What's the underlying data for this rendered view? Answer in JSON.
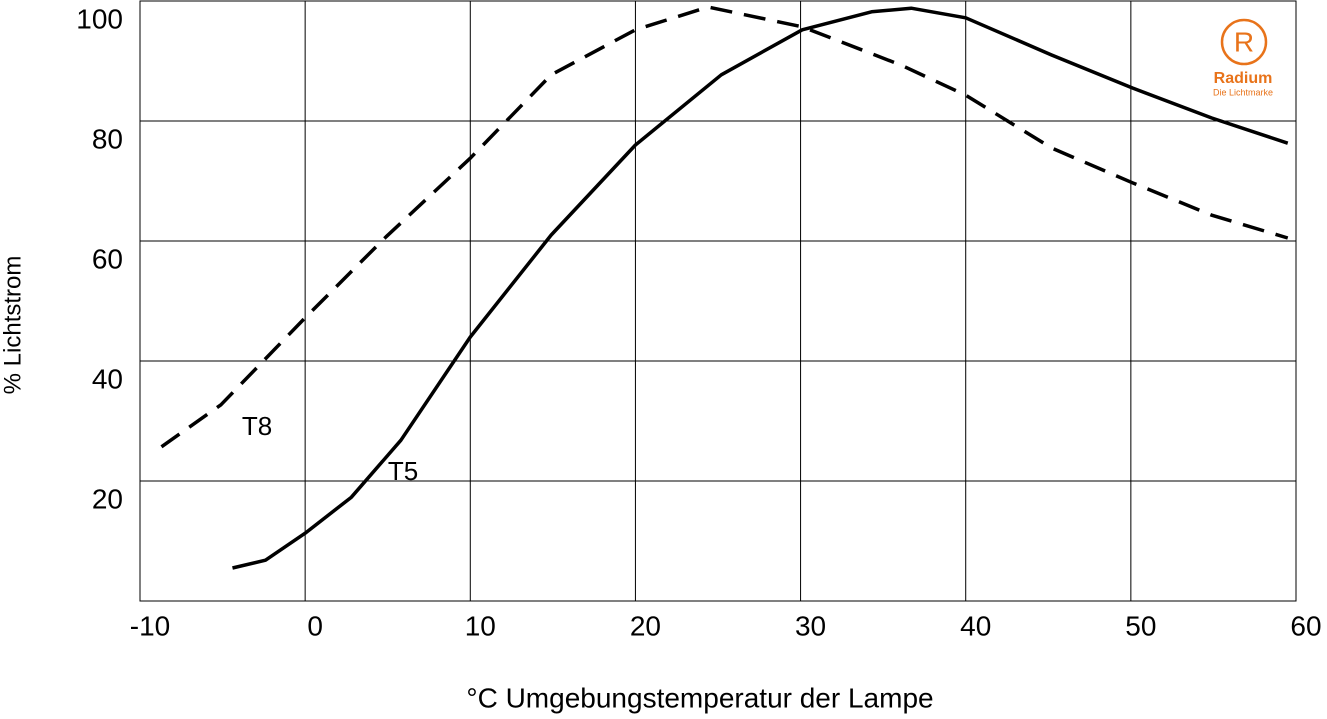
{
  "chart_data": {
    "type": "line",
    "x_label": "°C Umgebungstemperatur der Lampe",
    "y_label": "% Lichtstrom",
    "xlim": [
      -10,
      60
    ],
    "xticks": [
      -10,
      0,
      10,
      20,
      30,
      40,
      50,
      60
    ],
    "ylim": [
      0,
      100
    ],
    "yticks": [
      20,
      40,
      60,
      80,
      100
    ],
    "grid": true,
    "series": [
      {
        "name": "T8",
        "color": "#000000",
        "dashed": true,
        "x": [
          -8.7,
          -5.1,
          0,
          4.9,
          10,
          14.9,
          20,
          24.4,
          30.1,
          36.1,
          40,
          45.2,
          50.1,
          54.9,
          59.5
        ],
        "values": [
          25.7,
          32.7,
          47.2,
          60.7,
          73.8,
          87.7,
          95.2,
          99,
          95.7,
          89.3,
          84.3,
          75.5,
          69.7,
          64.3,
          60.5
        ]
      },
      {
        "name": "T5",
        "color": "#000000",
        "dashed": false,
        "x": [
          -4.4,
          -2.4,
          0,
          2.8,
          5.8,
          10,
          14.9,
          20,
          25.2,
          30.1,
          34.3,
          36.7,
          40,
          45.2,
          50.1,
          54.9,
          59.5
        ],
        "values": [
          5.5,
          6.8,
          11.3,
          17.3,
          26.8,
          44,
          61,
          76,
          87.7,
          95.2,
          98.2,
          98.8,
          97.2,
          91,
          85.5,
          80.5,
          76.3
        ]
      }
    ],
    "logo": {
      "mark": "R",
      "name": "Radium",
      "tagline": "Die Lichtmarke",
      "color": "#e8731a"
    }
  }
}
